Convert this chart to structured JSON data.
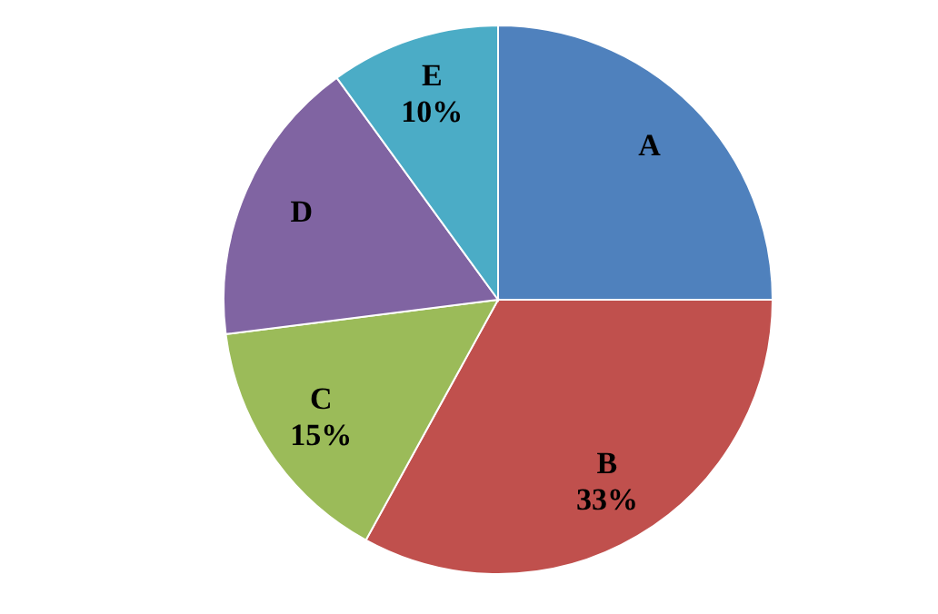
{
  "chart_data": {
    "type": "pie",
    "categories": [
      "A",
      "B",
      "C",
      "D",
      "E"
    ],
    "values": [
      25,
      33,
      15,
      17,
      10
    ],
    "value_labels": [
      null,
      "33%",
      "15%",
      null,
      "10%"
    ],
    "colors": [
      "#4f81bd",
      "#c0504d",
      "#9bbb59",
      "#8064a2",
      "#4bacc6"
    ]
  }
}
